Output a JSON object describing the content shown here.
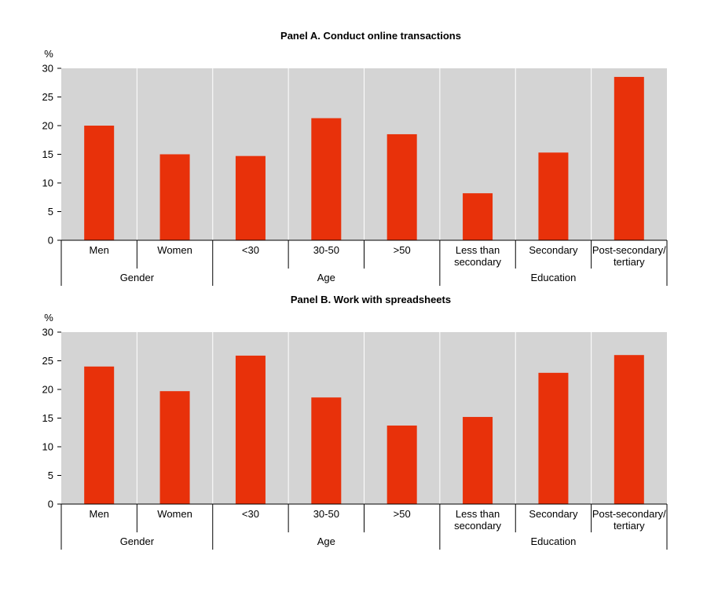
{
  "colors": {
    "bar": "#e8310a",
    "plot_bg": "#d4d4d4",
    "divider": "#ffffff",
    "axis": "#000000"
  },
  "chart_data": [
    {
      "type": "bar",
      "title": "Panel A. Conduct online transactions",
      "ylabel": "%",
      "ylim": [
        0,
        30
      ],
      "yticks": [
        "0",
        "5",
        "10",
        "15",
        "20",
        "25",
        "30"
      ],
      "categories": [
        "Men",
        "Women",
        "<30",
        "30-50",
        ">50",
        [
          "Less than",
          "secondary"
        ],
        "Secondary",
        [
          "Post-secondary/",
          "tertiary"
        ]
      ],
      "values": [
        20,
        15,
        14.7,
        21.3,
        18.5,
        8.2,
        15.3,
        28.5
      ],
      "groups": [
        {
          "label": "Gender",
          "span": 2
        },
        {
          "label": "Age",
          "span": 3
        },
        {
          "label": "Education",
          "span": 3
        }
      ],
      "grid": false
    },
    {
      "type": "bar",
      "title": "Panel B. Work with spreadsheets",
      "ylabel": "%",
      "ylim": [
        0,
        30
      ],
      "yticks": [
        "0",
        "5",
        "10",
        "15",
        "20",
        "25",
        "30"
      ],
      "categories": [
        "Men",
        "Women",
        "<30",
        "30-50",
        ">50",
        [
          "Less than",
          "secondary"
        ],
        "Secondary",
        [
          "Post-secondary/",
          "tertiary"
        ]
      ],
      "values": [
        24,
        19.7,
        25.9,
        18.6,
        13.7,
        15.2,
        22.9,
        26
      ],
      "groups": [
        {
          "label": "Gender",
          "span": 2
        },
        {
          "label": "Age",
          "span": 3
        },
        {
          "label": "Education",
          "span": 3
        }
      ],
      "grid": false
    }
  ]
}
